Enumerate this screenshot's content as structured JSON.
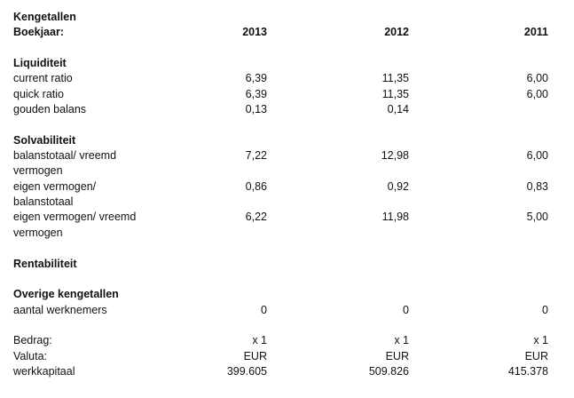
{
  "title": "Kengetallen",
  "header": {
    "label": "Boekjaar:",
    "years": [
      "2013",
      "2012",
      "2011"
    ]
  },
  "sections": [
    {
      "title": "Liquiditeit",
      "rows": [
        {
          "label": "current ratio",
          "values": [
            "6,39",
            "11,35",
            "6,00"
          ]
        },
        {
          "label": "quick ratio",
          "values": [
            "6,39",
            "11,35",
            "6,00"
          ]
        },
        {
          "label": "gouden balans",
          "values": [
            "0,13",
            "0,14",
            null
          ]
        }
      ]
    },
    {
      "title": "Solvabiliteit",
      "rows": [
        {
          "label": "balanstotaal/ vreemd vermogen",
          "values": [
            "7,22",
            "12,98",
            "6,00"
          ]
        },
        {
          "label": "eigen vermogen/ balanstotaal",
          "values": [
            "0,86",
            "0,92",
            "0,83"
          ]
        },
        {
          "label": "eigen vermogen/ vreemd vermogen",
          "values": [
            "6,22",
            "11,98",
            "5,00"
          ]
        }
      ]
    },
    {
      "title": "Rentabiliteit",
      "rows": []
    },
    {
      "title": "Overige kengetallen",
      "rows": [
        {
          "label": "aantal werknemers",
          "values": [
            "0",
            "0",
            "0"
          ]
        }
      ]
    }
  ],
  "footer": {
    "rows": [
      {
        "label": "Bedrag:",
        "values": [
          "x 1",
          "x 1",
          "x 1"
        ]
      },
      {
        "label": "Valuta:",
        "values": [
          "EUR",
          "EUR",
          "EUR"
        ]
      },
      {
        "label": "werkkapitaal",
        "values": [
          "399.605",
          "509.826",
          "415.378"
        ]
      }
    ]
  }
}
